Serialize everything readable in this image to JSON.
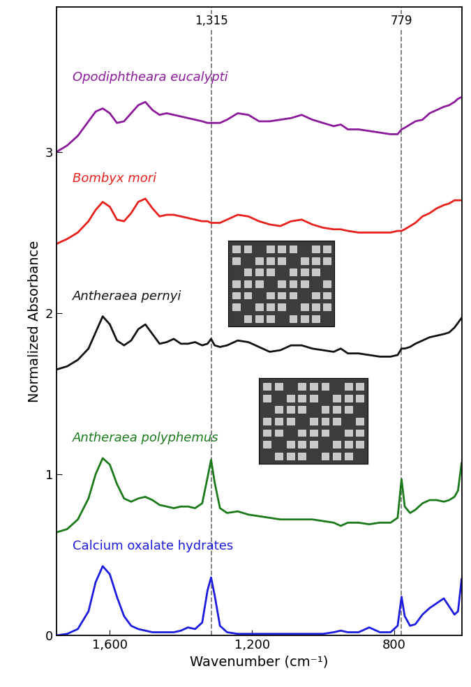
{
  "chart_data": {
    "type": "line",
    "x_label": "Wavenumber (cm⁻¹)",
    "y_label": "Normalized Absorbance",
    "xlim": [
      1750,
      610
    ],
    "ylim": [
      0,
      3.9
    ],
    "xticks": [
      {
        "value": 1600,
        "label": "1,600"
      },
      {
        "value": 1200,
        "label": "1,200"
      },
      800
    ],
    "yticks": [
      0,
      1,
      2,
      3
    ],
    "grid": false,
    "annotations": [
      {
        "text": "1,315",
        "x": 1315
      },
      {
        "text": "779",
        "x": 779
      }
    ],
    "x": [
      1750,
      1720,
      1690,
      1660,
      1640,
      1620,
      1600,
      1580,
      1560,
      1540,
      1520,
      1500,
      1480,
      1460,
      1440,
      1420,
      1400,
      1380,
      1360,
      1340,
      1325,
      1315,
      1305,
      1290,
      1270,
      1240,
      1210,
      1180,
      1150,
      1120,
      1090,
      1060,
      1030,
      1000,
      970,
      950,
      930,
      900,
      870,
      840,
      810,
      790,
      779,
      770,
      755,
      740,
      720,
      700,
      680,
      660,
      645,
      630,
      620,
      610
    ],
    "series": [
      {
        "name": "Opodiphtheara eucalypti",
        "color": "#8b1a9b",
        "values": [
          3.0,
          3.04,
          3.1,
          3.19,
          3.25,
          3.27,
          3.24,
          3.18,
          3.19,
          3.24,
          3.29,
          3.31,
          3.26,
          3.23,
          3.24,
          3.23,
          3.22,
          3.21,
          3.2,
          3.19,
          3.18,
          3.18,
          3.18,
          3.18,
          3.2,
          3.24,
          3.23,
          3.19,
          3.19,
          3.2,
          3.21,
          3.23,
          3.2,
          3.18,
          3.16,
          3.17,
          3.14,
          3.14,
          3.13,
          3.12,
          3.11,
          3.11,
          3.14,
          3.15,
          3.17,
          3.19,
          3.2,
          3.24,
          3.26,
          3.28,
          3.29,
          3.31,
          3.33,
          3.34
        ]
      },
      {
        "name": "Bombyx mori",
        "color": "#e8201c",
        "values": [
          2.43,
          2.46,
          2.5,
          2.57,
          2.64,
          2.69,
          2.66,
          2.58,
          2.57,
          2.62,
          2.69,
          2.71,
          2.65,
          2.6,
          2.61,
          2.61,
          2.6,
          2.59,
          2.58,
          2.57,
          2.57,
          2.56,
          2.56,
          2.56,
          2.58,
          2.61,
          2.6,
          2.57,
          2.55,
          2.54,
          2.57,
          2.58,
          2.55,
          2.53,
          2.52,
          2.52,
          2.51,
          2.5,
          2.5,
          2.5,
          2.5,
          2.51,
          2.51,
          2.52,
          2.54,
          2.56,
          2.6,
          2.62,
          2.65,
          2.67,
          2.68,
          2.7,
          2.7,
          2.7
        ]
      },
      {
        "name": "Antheraea pernyi",
        "color": "#111111",
        "values": [
          1.65,
          1.67,
          1.71,
          1.78,
          1.88,
          1.98,
          1.93,
          1.83,
          1.8,
          1.83,
          1.9,
          1.93,
          1.87,
          1.81,
          1.82,
          1.84,
          1.81,
          1.81,
          1.82,
          1.8,
          1.81,
          1.84,
          1.8,
          1.79,
          1.8,
          1.83,
          1.82,
          1.79,
          1.76,
          1.77,
          1.8,
          1.8,
          1.78,
          1.77,
          1.76,
          1.78,
          1.75,
          1.75,
          1.74,
          1.73,
          1.73,
          1.74,
          1.78,
          1.78,
          1.79,
          1.81,
          1.83,
          1.85,
          1.86,
          1.87,
          1.88,
          1.91,
          1.94,
          1.97
        ]
      },
      {
        "name": "Antheraea polyphemus",
        "color": "#1a7a1a",
        "values": [
          0.64,
          0.66,
          0.72,
          0.85,
          1.0,
          1.1,
          1.06,
          0.94,
          0.85,
          0.83,
          0.85,
          0.86,
          0.84,
          0.81,
          0.8,
          0.79,
          0.8,
          0.8,
          0.79,
          0.82,
          0.98,
          1.09,
          0.95,
          0.79,
          0.76,
          0.77,
          0.75,
          0.74,
          0.73,
          0.72,
          0.72,
          0.72,
          0.72,
          0.71,
          0.7,
          0.68,
          0.7,
          0.7,
          0.69,
          0.7,
          0.7,
          0.73,
          0.97,
          0.8,
          0.76,
          0.78,
          0.82,
          0.84,
          0.84,
          0.83,
          0.84,
          0.86,
          0.9,
          1.07
        ]
      },
      {
        "name": "Calcium oxalate hydrates",
        "color": "#1c1ce0",
        "values": [
          0.0,
          0.01,
          0.04,
          0.15,
          0.33,
          0.43,
          0.38,
          0.24,
          0.12,
          0.06,
          0.04,
          0.03,
          0.02,
          0.02,
          0.02,
          0.02,
          0.03,
          0.05,
          0.04,
          0.08,
          0.28,
          0.36,
          0.25,
          0.06,
          0.02,
          0.01,
          0.01,
          0.01,
          0.01,
          0.01,
          0.01,
          0.01,
          0.01,
          0.01,
          0.02,
          0.03,
          0.02,
          0.02,
          0.05,
          0.02,
          0.02,
          0.06,
          0.24,
          0.12,
          0.06,
          0.07,
          0.13,
          0.17,
          0.2,
          0.23,
          0.18,
          0.13,
          0.15,
          0.35
        ]
      }
    ]
  }
}
